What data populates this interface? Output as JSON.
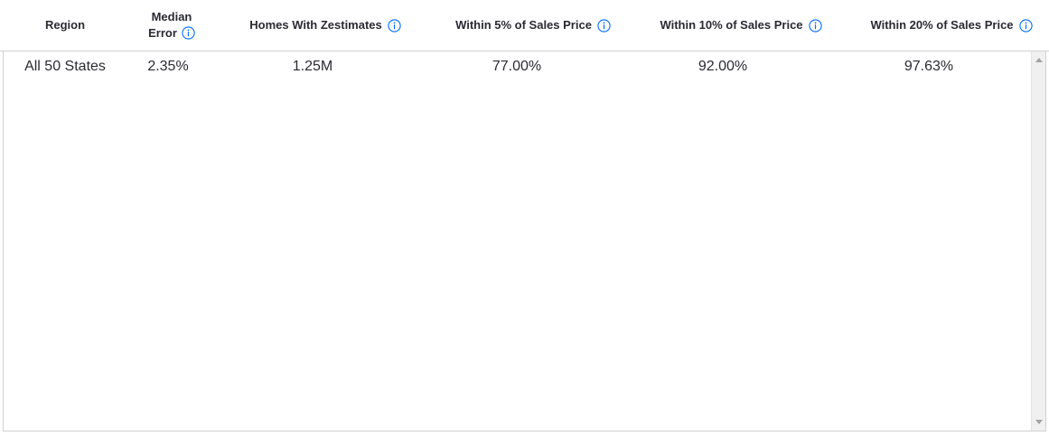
{
  "table": {
    "headers": {
      "region": "Region",
      "median_error_line1": "Median",
      "median_error_line2": "Error",
      "homes": "Homes With Zestimates",
      "within5": "Within 5% of Sales Price",
      "within10": "Within 10% of Sales Price",
      "within20": "Within 20% of Sales Price"
    },
    "rows": [
      {
        "region": "All 50 States",
        "median_error": "2.35%",
        "homes": "1.25M",
        "within5": "77.00%",
        "within10": "92.00%",
        "within20": "97.63%"
      }
    ]
  },
  "colors": {
    "info_icon": "#006aff",
    "border": "#d1d1d5",
    "text": "#2a2a33"
  },
  "icons": {
    "info": "info-circle-icon",
    "scroll_up": "triangle-up-icon",
    "scroll_down": "triangle-down-icon"
  }
}
